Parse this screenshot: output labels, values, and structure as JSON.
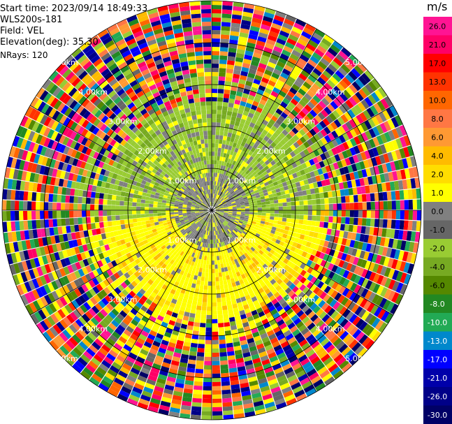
{
  "info": {
    "start_time": "Start time: 2023/09/14 18:49:33",
    "instrument": "WLS200s-181",
    "field": "Field: VEL",
    "elevation": "Elevation(deg): 35.30",
    "nrays": "NRays: 120"
  },
  "colorbar": {
    "unit": "m/s",
    "ticks": [
      "26.0",
      "21.0",
      "17.0",
      "13.0",
      "10.0",
      "8.0",
      "6.0",
      "4.0",
      "2.0",
      "1.0",
      "0.0",
      "-1.0",
      "-2.0",
      "-4.0",
      "-6.0",
      "-8.0",
      "-10.0",
      "-13.0",
      "-17.0",
      "-21.0",
      "-26.0",
      "-30.0"
    ],
    "colors": [
      "#ff1493",
      "#ff0066",
      "#ff0000",
      "#ff3300",
      "#ff6600",
      "#ff7744",
      "#ff9933",
      "#ffbb00",
      "#ffdd00",
      "#ffff00",
      "#808080",
      "#666666",
      "#99cc33",
      "#77aa22",
      "#558800",
      "#228822",
      "#22aa55",
      "#0088cc",
      "#0000ff",
      "#0000aa",
      "#000088",
      "#000066"
    ]
  },
  "chart_data": {
    "type": "ppi",
    "field": "VEL",
    "units": "m/s",
    "n_rays": 120,
    "max_range_km": 5.0,
    "range_ring_labels": [
      "1.00km",
      "2.00km",
      "3.00km",
      "4.00km",
      "5.00km"
    ],
    "range_rings_km": [
      1,
      2,
      3,
      4,
      5
    ],
    "near_range_pattern": [
      {
        "range_km": [
          0,
          0.9
        ],
        "azimuth_deg": [
          0,
          360
        ],
        "dominant": "0.0"
      },
      {
        "range_km": [
          0.9,
          2.0
        ],
        "azimuth_deg": [
          280,
          80
        ],
        "dominant": "-2.0"
      },
      {
        "range_km": [
          0.9,
          2.0
        ],
        "azimuth_deg": [
          100,
          260
        ],
        "dominant": "2.0"
      }
    ],
    "far_range_note": "beyond about 2.5km the velocity field is noise (all colors)",
    "color_min": -30.0,
    "color_max": 26.0
  }
}
